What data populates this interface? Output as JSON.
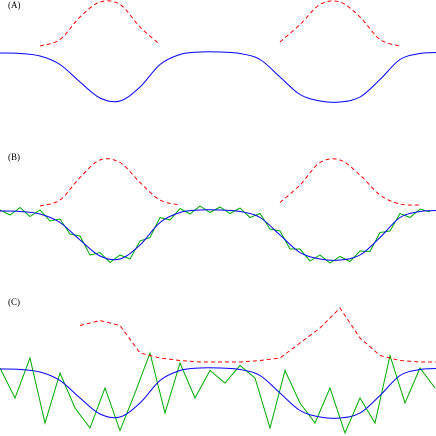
{
  "chart_data": [
    {
      "type": "line",
      "title": "(A)",
      "xlim": [
        0,
        436
      ],
      "ylim": [
        -0.6,
        2.3
      ],
      "x": [
        0,
        20,
        40,
        60,
        80,
        100,
        120,
        140,
        160,
        180,
        200,
        220,
        240,
        260,
        280,
        300,
        320,
        340,
        360,
        380,
        400,
        420,
        436
      ],
      "series": [
        {
          "color": "#0000ff",
          "smooth": true,
          "values": [
            0.98,
            0.97,
            0.92,
            0.75,
            0.4,
            0.08,
            0.02,
            0.3,
            0.75,
            0.95,
            1.0,
            1.0,
            0.97,
            0.85,
            0.5,
            0.15,
            0.02,
            0.0,
            0.1,
            0.45,
            0.85,
            0.97,
            0.99
          ]
        },
        {
          "color": "#ff0000",
          "smooth": true,
          "dashed": true,
          "values": [
            null,
            null,
            1.12,
            1.25,
            1.7,
            2.0,
            1.95,
            1.5,
            1.15,
            null,
            null,
            null,
            null,
            null,
            1.2,
            1.55,
            1.95,
            2.0,
            1.7,
            1.25,
            1.12,
            null,
            null
          ]
        }
      ]
    },
    {
      "type": "line",
      "title": "(B)",
      "xlim": [
        0,
        436
      ],
      "ylim": [
        -0.6,
        2.3
      ],
      "x": [
        0,
        20,
        40,
        60,
        80,
        100,
        120,
        140,
        160,
        180,
        200,
        220,
        240,
        260,
        280,
        300,
        320,
        340,
        360,
        380,
        400,
        420,
        436
      ],
      "series": [
        {
          "color": "#00aa00",
          "x": [
            0,
            10,
            20,
            30,
            40,
            50,
            60,
            70,
            80,
            90,
            100,
            110,
            120,
            130,
            140,
            150,
            160,
            170,
            180,
            190,
            200,
            210,
            220,
            230,
            240,
            250,
            260,
            270,
            280,
            290,
            300,
            310,
            320,
            330,
            340,
            350,
            360,
            370,
            380,
            390,
            400,
            410,
            420,
            430
          ],
          "values": [
            1.0,
            0.9,
            1.05,
            0.87,
            1.0,
            0.78,
            0.82,
            0.52,
            0.48,
            0.1,
            0.15,
            -0.05,
            0.1,
            0.02,
            0.38,
            0.45,
            0.85,
            0.8,
            1.03,
            0.92,
            1.08,
            0.95,
            1.06,
            0.93,
            1.04,
            0.85,
            0.93,
            0.62,
            0.58,
            0.22,
            0.22,
            -0.02,
            0.1,
            -0.06,
            0.07,
            -0.03,
            0.18,
            0.17,
            0.55,
            0.58,
            0.93,
            0.85,
            1.02,
            0.96
          ]
        },
        {
          "color": "#0000ff",
          "smooth": true,
          "values": [
            0.98,
            0.97,
            0.92,
            0.75,
            0.4,
            0.08,
            0.02,
            0.3,
            0.75,
            0.95,
            1.0,
            1.0,
            0.97,
            0.85,
            0.5,
            0.15,
            0.02,
            0.0,
            0.1,
            0.45,
            0.85,
            0.97,
            0.99
          ]
        },
        {
          "color": "#ff0000",
          "smooth": true,
          "dashed": true,
          "values": [
            null,
            null,
            1.08,
            1.2,
            1.65,
            2.0,
            1.95,
            1.55,
            1.2,
            1.1,
            null,
            null,
            null,
            null,
            1.15,
            1.5,
            1.95,
            2.0,
            1.7,
            1.3,
            1.12,
            1.1,
            null
          ]
        }
      ]
    },
    {
      "type": "line",
      "title": "(C)",
      "xlim": [
        0,
        436
      ],
      "ylim": [
        -0.6,
        2.3
      ],
      "x": [
        0,
        20,
        40,
        60,
        80,
        100,
        120,
        140,
        160,
        180,
        200,
        220,
        240,
        260,
        280,
        300,
        320,
        340,
        360,
        380,
        400,
        420,
        436
      ],
      "series": [
        {
          "color": "#00aa00",
          "x": [
            0,
            15,
            30,
            45,
            60,
            75,
            90,
            105,
            120,
            135,
            150,
            165,
            180,
            195,
            210,
            225,
            240,
            255,
            270,
            285,
            300,
            315,
            330,
            345,
            360,
            375,
            390,
            405,
            420,
            435
          ],
          "values": [
            1.0,
            0.4,
            1.2,
            -0.1,
            0.9,
            0.2,
            -0.2,
            0.6,
            -0.25,
            0.5,
            1.3,
            0.1,
            1.1,
            0.4,
            0.95,
            0.7,
            1.05,
            0.8,
            -0.2,
            0.95,
            0.3,
            -0.1,
            0.6,
            -0.3,
            0.4,
            -0.1,
            1.25,
            0.3,
            1.0,
            0.6
          ]
        },
        {
          "color": "#0000ff",
          "smooth": true,
          "values": [
            0.98,
            0.97,
            0.92,
            0.75,
            0.4,
            0.08,
            0.02,
            0.3,
            0.75,
            0.95,
            1.0,
            1.0,
            0.97,
            0.85,
            0.5,
            0.15,
            0.02,
            0.0,
            0.1,
            0.45,
            0.85,
            0.97,
            0.99
          ]
        },
        {
          "color": "#ff0000",
          "dashed": true,
          "values": [
            null,
            null,
            null,
            null,
            1.85,
            1.95,
            1.85,
            1.3,
            1.2,
            1.15,
            1.12,
            1.12,
            1.12,
            1.15,
            1.2,
            1.5,
            1.8,
            2.2,
            1.6,
            1.25,
            1.15,
            1.12,
            1.12
          ]
        }
      ]
    }
  ]
}
